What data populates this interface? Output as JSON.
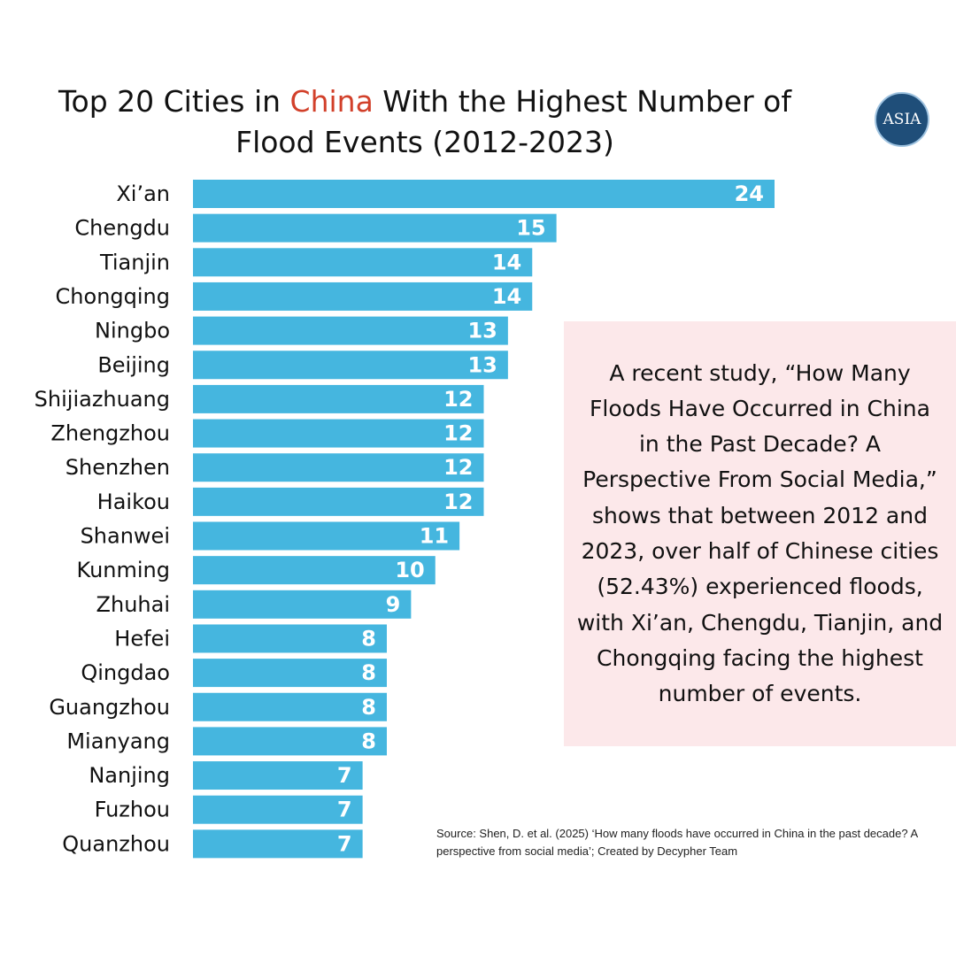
{
  "chart_data": {
    "type": "bar",
    "orientation": "horizontal",
    "title_segments": [
      {
        "text": "Top 20 Cities in",
        "color": "#111111"
      },
      {
        "text": "China",
        "color": "#d2402a"
      },
      {
        "text": "With the Highest Number of Flood Events (2012-2023)",
        "color": "#111111"
      }
    ],
    "categories": [
      "Xi’an",
      "Chengdu",
      "Tianjin",
      "Chongqing",
      "Ningbo",
      "Beijing",
      "Shijiazhuang",
      "Zhengzhou",
      "Shenzhen",
      "Haikou",
      "Shanwei",
      "Kunming",
      "Zhuhai",
      "Hefei",
      "Qingdao",
      "Guangzhou",
      "Mianyang",
      "Nanjing",
      "Fuzhou",
      "Quanzhou"
    ],
    "values": [
      24,
      15,
      14,
      14,
      13,
      13,
      12,
      12,
      12,
      12,
      11,
      10,
      9,
      8,
      8,
      8,
      8,
      7,
      7,
      7
    ],
    "color": "#45b6df",
    "annotation": "A recent study, “How Many Floods Have Occurred in China in the Past Decade? A Perspective From Social Media,” shows that between 2012 and 2023, over half of Chinese cities (52.43%) experienced floods, with Xi’an, Chengdu, Tianjin, and Chongqing facing the highest number of events.",
    "source": "Source: Shen, D. et al. (2025) ‘How many floods have occurred in China in the past decade? A perspective from social media’; Created by Decypher Team",
    "logo": "ASIA"
  }
}
